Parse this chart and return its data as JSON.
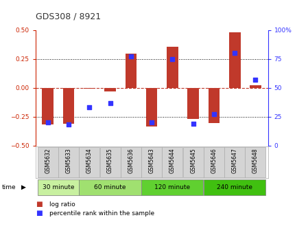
{
  "title": "GDS308 / 8921",
  "samples": [
    "GSM5632",
    "GSM5633",
    "GSM5634",
    "GSM5635",
    "GSM5636",
    "GSM5643",
    "GSM5644",
    "GSM5645",
    "GSM5646",
    "GSM5647",
    "GSM5648"
  ],
  "log_ratio": [
    -0.32,
    -0.31,
    -0.01,
    -0.03,
    0.295,
    -0.335,
    0.355,
    -0.27,
    -0.305,
    0.48,
    0.02
  ],
  "percentile": [
    20,
    18,
    33,
    37,
    77,
    20,
    75,
    19,
    27,
    80,
    57
  ],
  "time_groups": [
    {
      "label": "30 minute",
      "start": 0,
      "end": 2,
      "color": "#c8f0a0"
    },
    {
      "label": "60 minute",
      "start": 2,
      "end": 5,
      "color": "#a0e070"
    },
    {
      "label": "120 minute",
      "start": 5,
      "end": 8,
      "color": "#60d030"
    },
    {
      "label": "240 minute",
      "start": 8,
      "end": 11,
      "color": "#40c010"
    }
  ],
  "bar_color": "#c0392b",
  "dot_color": "#3333ff",
  "bar_width": 0.55,
  "ylim": [
    -0.5,
    0.5
  ],
  "y2lim": [
    0,
    100
  ],
  "yticks": [
    -0.5,
    -0.25,
    0,
    0.25,
    0.5
  ],
  "y2ticks": [
    0,
    25,
    50,
    75,
    100
  ],
  "hlines_dotted": [
    -0.25,
    0.25
  ],
  "hline_dashed": 0,
  "legend_bar_label": "log ratio",
  "legend_dot_label": "percentile rank within the sample",
  "time_label": "time",
  "title_color": "#333333",
  "left_tick_color": "#cc2200",
  "right_tick_color": "#3333ff",
  "sample_box_color": "#d4d4d4",
  "sample_box_edge": "#aaaaaa"
}
